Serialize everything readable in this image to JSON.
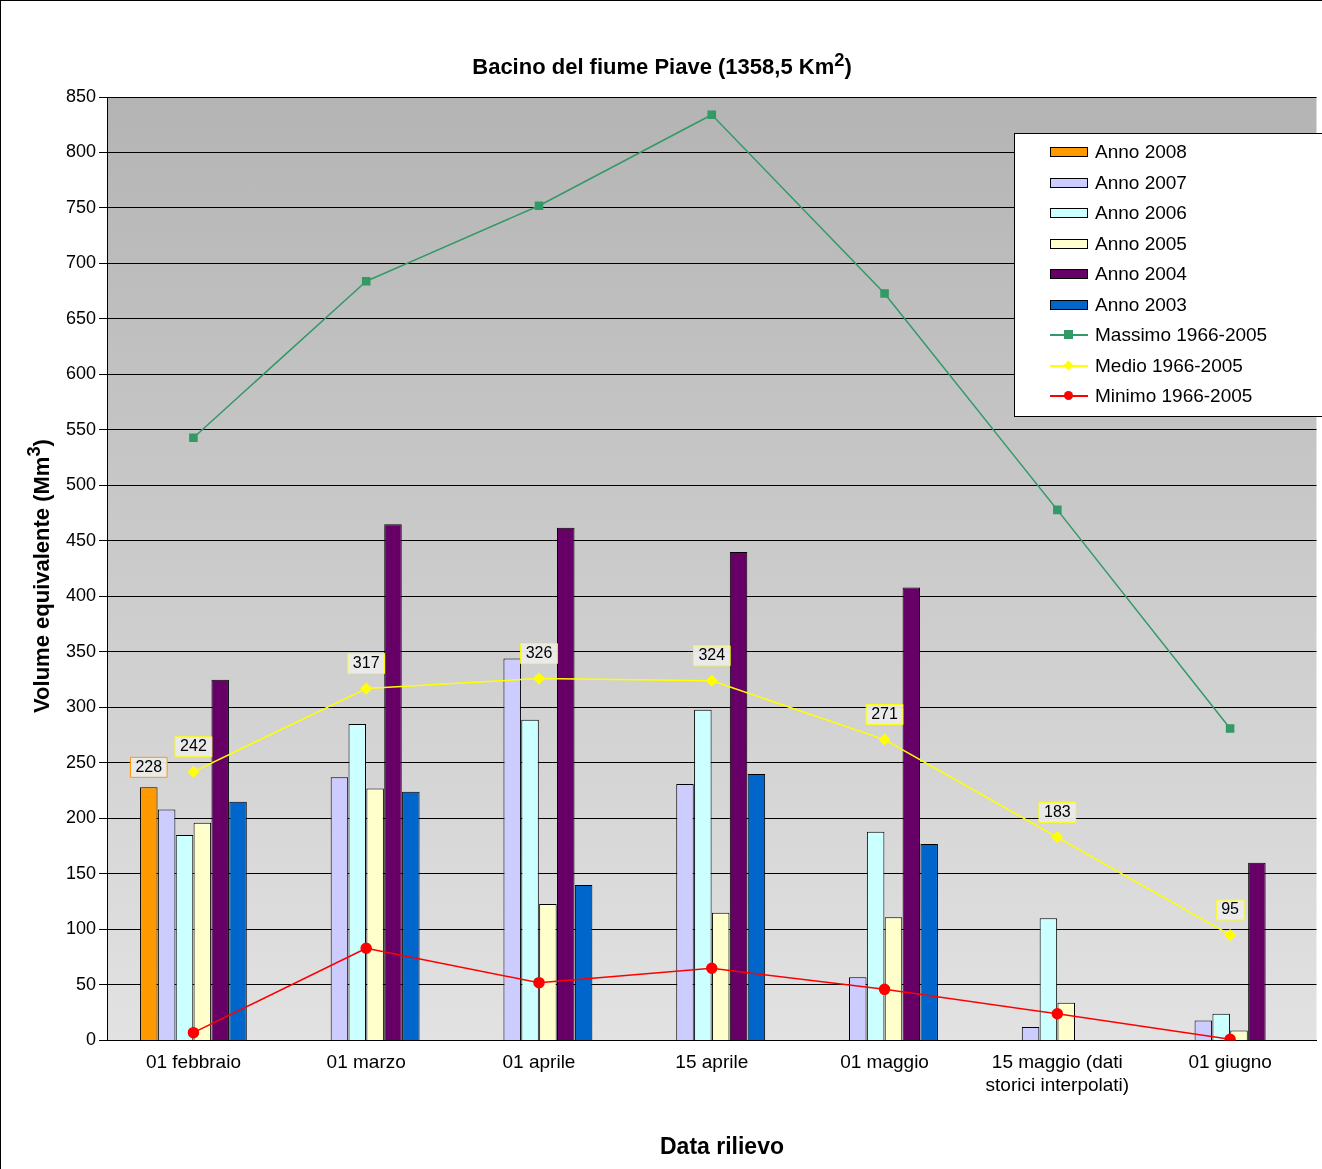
{
  "chart_data": {
    "type": "bar",
    "title": "Bacino del fiume Piave (1358,5 Km$^{2}$)",
    "xlabel": "Data rilievo",
    "ylabel": "Volume equivalente (Mm$^{3}$)",
    "categories": [
      "01 febbraio",
      "01 marzo",
      "01 aprile",
      "15 aprile",
      "01 maggio",
      "15 maggio (dati storici interpolati)",
      "01 giugno"
    ],
    "series": [
      {
        "name": "Anno 2008",
        "color": "#ff9900",
        "values": [
          228,
          null,
          null,
          null,
          null,
          null,
          null
        ],
        "value_labels": [
          "228",
          null,
          null,
          null,
          null,
          null,
          null
        ]
      },
      {
        "name": "Anno 2007",
        "color": "#ccccff",
        "values": [
          208,
          237,
          344,
          231,
          57,
          12,
          18
        ]
      },
      {
        "name": "Anno 2006",
        "color": "#ccffff",
        "values": [
          185,
          285,
          289,
          298,
          188,
          110,
          24
        ]
      },
      {
        "name": "Anno 2005",
        "color": "#ffffcc",
        "values": [
          196,
          227,
          123,
          115,
          111,
          34,
          9
        ]
      },
      {
        "name": "Anno 2004",
        "color": "#660066",
        "values": [
          325,
          465,
          462,
          440,
          408,
          null,
          160
        ]
      },
      {
        "name": "Anno 2003",
        "color": "#0066cc",
        "values": [
          215,
          224,
          140,
          240,
          177,
          null,
          null
        ]
      },
      {
        "name": "Massimo 1966-2005",
        "type": "line",
        "marker": "square",
        "color": "#339966",
        "values": [
          543,
          684,
          752,
          834,
          673,
          478,
          281
        ]
      },
      {
        "name": "Medio 1966-2005",
        "type": "line",
        "marker": "diamond",
        "color": "#ffff00",
        "values": [
          242,
          317,
          326,
          324,
          271,
          183,
          95
        ],
        "value_labels": [
          "242",
          "317",
          "326",
          "324",
          "271",
          "183",
          "95"
        ]
      },
      {
        "name": "Minimo 1966-2005",
        "type": "line",
        "marker": "circle",
        "color": "#ff0000",
        "values": [
          7,
          83,
          52,
          65,
          46,
          24,
          1
        ]
      }
    ],
    "ylim": [
      0,
      850
    ],
    "yticks": [
      0,
      50,
      100,
      150,
      200,
      250,
      300,
      350,
      400,
      450,
      500,
      550,
      600,
      650,
      700,
      750,
      800,
      850
    ],
    "grid": "y",
    "legend": "top right"
  }
}
